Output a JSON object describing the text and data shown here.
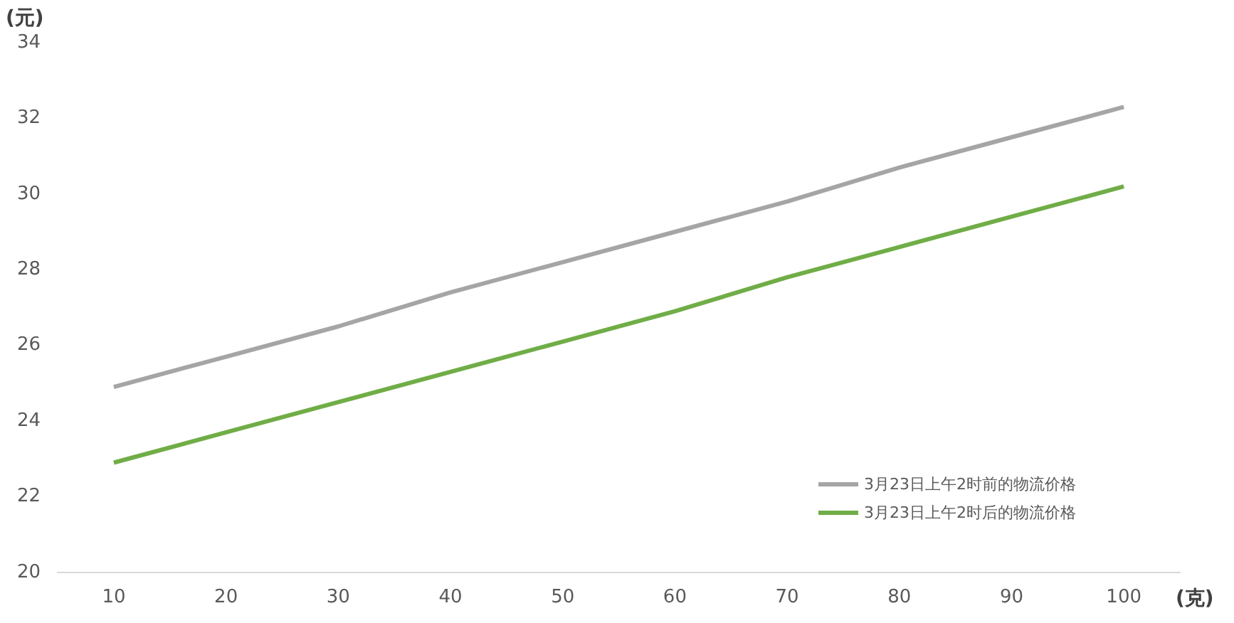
{
  "chart_data": {
    "type": "line",
    "xlabel": "(克)",
    "ylabel": "(元)",
    "categories": [
      "10",
      "20",
      "30",
      "40",
      "50",
      "60",
      "70",
      "80",
      "90",
      "100"
    ],
    "series": [
      {
        "name": "3月23日上午2时前的物流价格",
        "color": "#a5a5a5",
        "values": [
          24.9,
          25.7,
          26.5,
          27.4,
          28.2,
          29.0,
          29.8,
          30.7,
          31.5,
          32.3
        ]
      },
      {
        "name": "3月23日上午2时后的物流价格",
        "color": "#70ad47",
        "values": [
          22.9,
          23.7,
          24.5,
          25.3,
          26.1,
          26.9,
          27.8,
          28.6,
          29.4,
          30.2
        ]
      }
    ],
    "ylim": [
      20,
      34
    ],
    "yticks": [
      20,
      22,
      24,
      26,
      28,
      30,
      32,
      34
    ],
    "grid": false,
    "legend": "bottom right",
    "marker": "none",
    "line_style": "solid"
  }
}
